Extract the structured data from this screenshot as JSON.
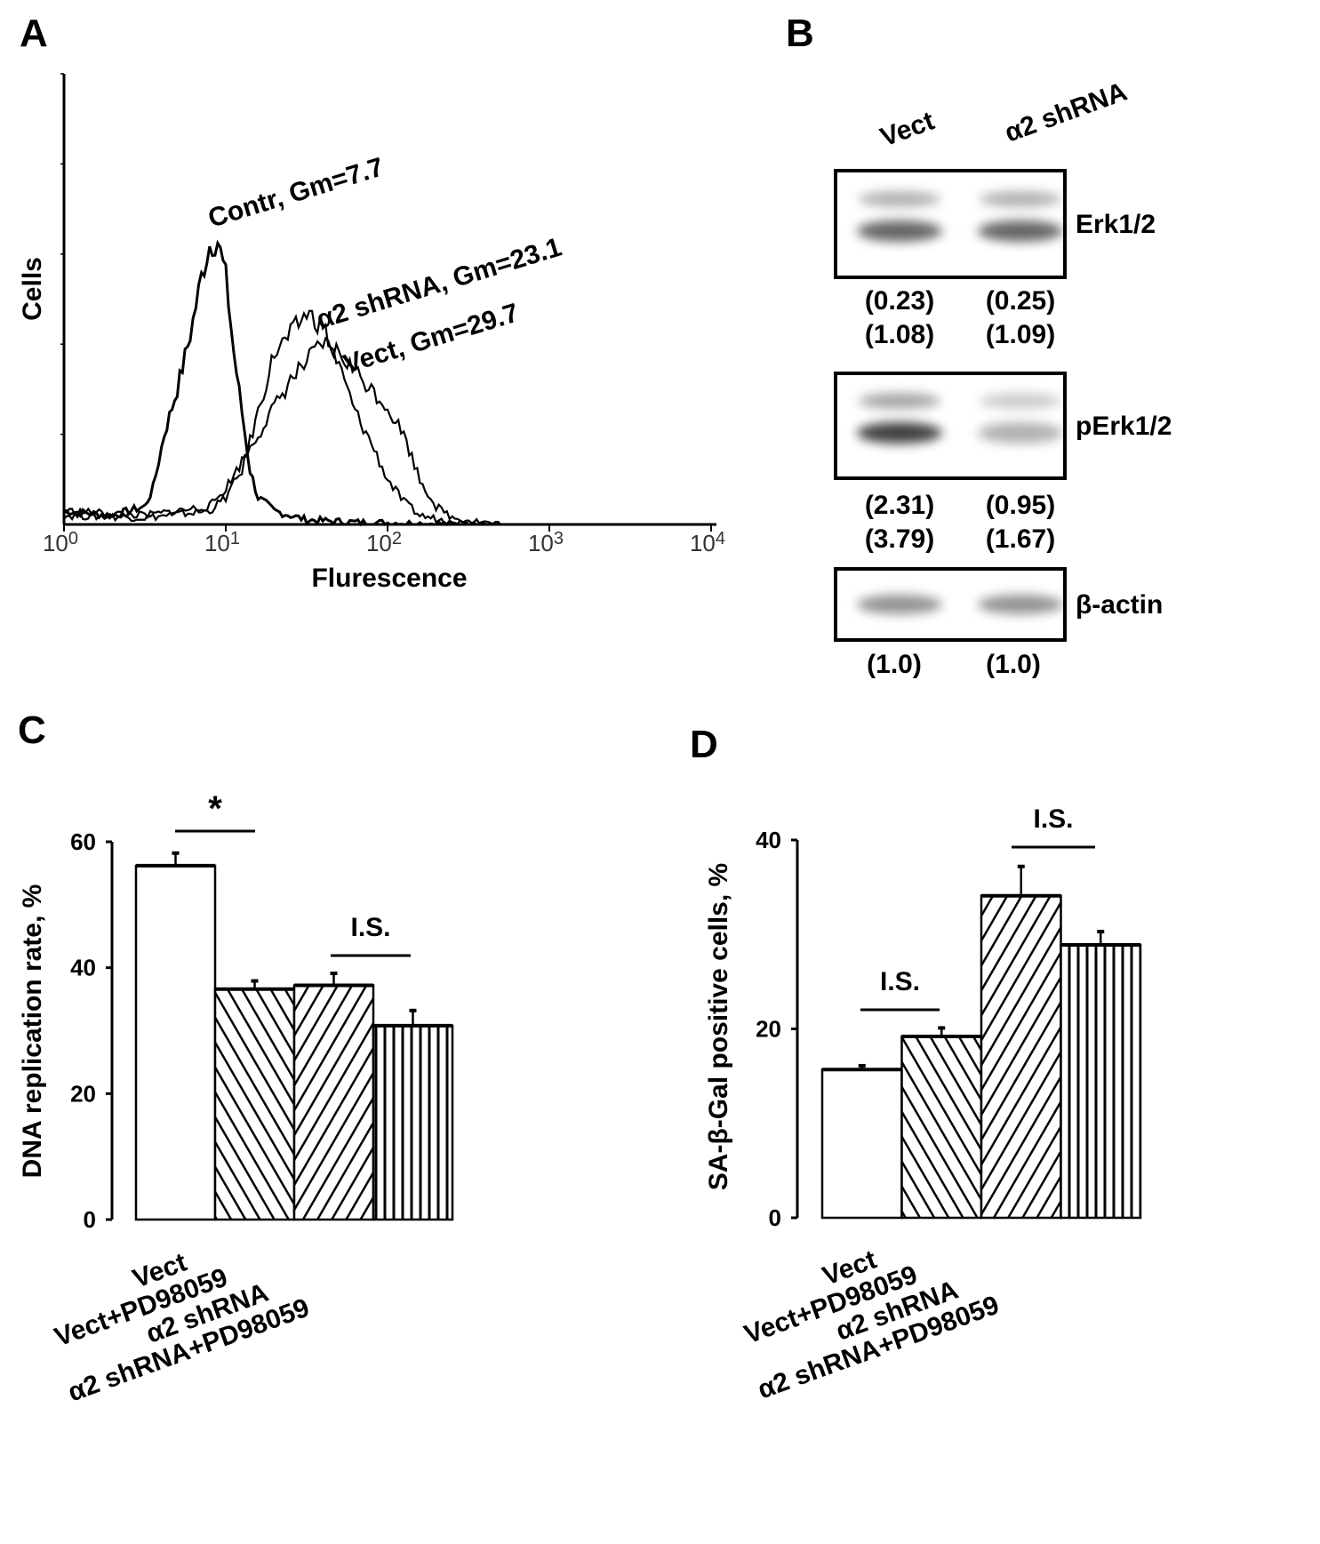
{
  "panels": {
    "a": "A",
    "b": "B",
    "c": "C",
    "d": "D"
  },
  "chart_data": [
    {
      "type": "line",
      "panel": "A",
      "xlabel": "Flurescence",
      "ylabel": "Cells",
      "xscale": "log",
      "xlim": [
        1,
        10000
      ],
      "xticks": [
        "10^0",
        "10^1",
        "10^2",
        "10^3",
        "10^4"
      ],
      "series": [
        {
          "name": "Contr, Gm=7.7",
          "x_log10": [
            0,
            0.3,
            0.5,
            0.55,
            0.62,
            0.7,
            0.78,
            0.85,
            0.9,
            0.95,
            1.0,
            1.05,
            1.1,
            1.15,
            1.2,
            1.3,
            1.5,
            1.8,
            2.5
          ],
          "y": [
            3,
            2,
            4,
            8,
            20,
            30,
            42,
            55,
            62,
            63,
            55,
            38,
            25,
            12,
            6,
            3,
            1,
            0.5,
            0
          ]
        },
        {
          "name": "α2 shRNA, Gm=23.1",
          "x_log10": [
            0,
            0.5,
            0.9,
            1.0,
            1.1,
            1.2,
            1.3,
            1.4,
            1.5,
            1.6,
            1.7,
            1.8,
            1.9,
            2.0,
            2.1,
            2.2,
            2.4,
            2.7
          ],
          "y": [
            2,
            1.5,
            3,
            6,
            12,
            25,
            38,
            42,
            47,
            44,
            35,
            25,
            18,
            10,
            5,
            2,
            0.5,
            0
          ]
        },
        {
          "name": "Vect, Gm=29.7",
          "x_log10": [
            0,
            0.5,
            0.9,
            1.0,
            1.1,
            1.2,
            1.3,
            1.4,
            1.5,
            1.6,
            1.7,
            1.8,
            1.9,
            2.0,
            2.1,
            2.2,
            2.3,
            2.4,
            2.7
          ],
          "y": [
            3,
            2,
            4,
            8,
            14,
            20,
            26,
            32,
            36,
            40,
            38,
            34,
            30,
            26,
            20,
            10,
            4,
            1.5,
            0
          ]
        }
      ]
    },
    {
      "type": "table",
      "panel": "B",
      "columns": [
        "Vect",
        "α2 shRNA"
      ],
      "blots": [
        {
          "name": "Erk1/2",
          "values": [
            [
              "(0.23)",
              "(1.08)"
            ],
            [
              "(0.25)",
              "(1.09)"
            ]
          ],
          "intensity": [
            0.8,
            0.8
          ]
        },
        {
          "name": "pErk1/2",
          "values": [
            [
              "(2.31)",
              "(3.79)"
            ],
            [
              "(0.95)",
              "(1.67)"
            ]
          ],
          "intensity": [
            1.0,
            0.4
          ]
        },
        {
          "name": "β-actin",
          "values": [
            [
              "(1.0)"
            ],
            [
              "(1.0)"
            ]
          ],
          "intensity": [
            0.6,
            0.6
          ]
        }
      ]
    },
    {
      "type": "bar",
      "panel": "C",
      "ylabel": "DNA replication rate, %",
      "ylim": [
        0,
        60
      ],
      "yticks": [
        "0",
        "20",
        "40",
        "60"
      ],
      "categories": [
        "Vect",
        "Vect+PD98059",
        "α2 shRNA",
        "α2 shRNA+PD98059"
      ],
      "values": [
        56.2,
        36.6,
        37.2,
        30.8
      ],
      "errors": [
        2.0,
        1.3,
        1.9,
        2.4
      ],
      "patterns": [
        "none",
        "back-diagonal",
        "diagonal",
        "vertical"
      ],
      "annotations": [
        {
          "text": "*",
          "between": [
            0,
            1
          ]
        },
        {
          "text": "I.S.",
          "between": [
            2,
            3
          ]
        }
      ]
    },
    {
      "type": "bar",
      "panel": "D",
      "ylabel": "SA-β-Gal positive cells, %",
      "ylim": [
        0,
        40
      ],
      "yticks": [
        "0",
        "20",
        "40"
      ],
      "categories": [
        "Vect",
        "Vect+PD98059",
        "α2 shRNA",
        "α2 shRNA+PD98059"
      ],
      "values": [
        15.7,
        19.2,
        34.1,
        28.9
      ],
      "errors": [
        0.4,
        0.9,
        3.1,
        1.4
      ],
      "patterns": [
        "none",
        "back-diagonal",
        "diagonal",
        "vertical"
      ],
      "annotations": [
        {
          "text": "I.S.",
          "between": [
            0,
            1
          ]
        },
        {
          "text": "I.S.",
          "between": [
            2,
            3
          ]
        }
      ]
    }
  ]
}
